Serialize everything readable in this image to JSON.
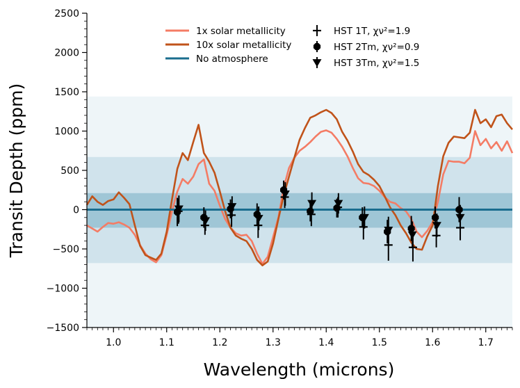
{
  "chart_data": {
    "type": "line",
    "title": "",
    "xlabel": "Wavelength (microns)",
    "ylabel": "Transit Depth (ppm)",
    "xlim": [
      0.95,
      1.75
    ],
    "ylim": [
      -1500,
      2500
    ],
    "grid": false,
    "x_ticks": [
      1.0,
      1.1,
      1.2,
      1.3,
      1.4,
      1.5,
      1.6,
      1.7
    ],
    "x_tick_labels": [
      "1.0",
      "1.1",
      "1.2",
      "1.3",
      "1.4",
      "1.5",
      "1.6",
      "1.7"
    ],
    "y_ticks": [
      -1500,
      -1000,
      -500,
      0,
      500,
      1000,
      1500,
      2000,
      2500
    ],
    "y_tick_labels": [
      "−1500",
      "−1000",
      "−500",
      "0",
      "500",
      "1000",
      "1500",
      "2000",
      "2500"
    ],
    "bands": [
      {
        "y_range": [
          -1500,
          1440
        ],
        "color": "#eef5f8"
      },
      {
        "y_range": [
          -680,
          670
        ],
        "color": "#d0e3ec"
      },
      {
        "y_range": [
          -230,
          210
        ],
        "color": "#9fc6d6"
      }
    ],
    "series": [
      {
        "name": "1x solar metallicity",
        "color": "#f47c65",
        "kind": "line",
        "x": [
          0.95,
          0.96,
          0.97,
          0.98,
          0.99,
          1.0,
          1.01,
          1.02,
          1.03,
          1.04,
          1.05,
          1.06,
          1.07,
          1.08,
          1.09,
          1.1,
          1.11,
          1.12,
          1.13,
          1.14,
          1.15,
          1.16,
          1.17,
          1.18,
          1.19,
          1.2,
          1.21,
          1.22,
          1.23,
          1.24,
          1.25,
          1.26,
          1.27,
          1.28,
          1.29,
          1.3,
          1.31,
          1.32,
          1.33,
          1.34,
          1.35,
          1.36,
          1.37,
          1.38,
          1.39,
          1.4,
          1.41,
          1.42,
          1.43,
          1.44,
          1.45,
          1.46,
          1.47,
          1.48,
          1.49,
          1.5,
          1.51,
          1.52,
          1.53,
          1.54,
          1.55,
          1.56,
          1.57,
          1.58,
          1.59,
          1.6,
          1.61,
          1.62,
          1.63,
          1.64,
          1.65,
          1.66,
          1.67,
          1.68,
          1.69,
          1.7,
          1.71,
          1.72,
          1.73,
          1.74,
          1.75
        ],
        "values": [
          -200,
          -240,
          -280,
          -220,
          -170,
          -180,
          -160,
          -190,
          -230,
          -320,
          -450,
          -560,
          -630,
          -670,
          -580,
          -320,
          -20,
          230,
          390,
          330,
          420,
          580,
          640,
          330,
          240,
          50,
          -120,
          -230,
          -300,
          -330,
          -320,
          -400,
          -560,
          -690,
          -600,
          -350,
          -100,
          280,
          530,
          660,
          750,
          800,
          860,
          930,
          990,
          1010,
          980,
          900,
          800,
          680,
          530,
          400,
          340,
          330,
          300,
          240,
          160,
          100,
          80,
          20,
          -20,
          -120,
          -280,
          -350,
          -270,
          -160,
          100,
          450,
          620,
          610,
          610,
          590,
          660,
          1000,
          820,
          900,
          780,
          860,
          750,
          870,
          720
        ]
      },
      {
        "name": "10x solar metallicity",
        "color": "#c0531a",
        "kind": "line",
        "x": [
          0.95,
          0.96,
          0.97,
          0.98,
          0.99,
          1.0,
          1.01,
          1.02,
          1.03,
          1.04,
          1.05,
          1.06,
          1.07,
          1.08,
          1.09,
          1.1,
          1.11,
          1.12,
          1.13,
          1.14,
          1.15,
          1.16,
          1.17,
          1.18,
          1.19,
          1.2,
          1.21,
          1.22,
          1.23,
          1.24,
          1.25,
          1.26,
          1.27,
          1.28,
          1.29,
          1.3,
          1.31,
          1.32,
          1.33,
          1.34,
          1.35,
          1.36,
          1.37,
          1.38,
          1.39,
          1.4,
          1.41,
          1.42,
          1.43,
          1.44,
          1.45,
          1.46,
          1.47,
          1.48,
          1.49,
          1.5,
          1.51,
          1.52,
          1.53,
          1.54,
          1.55,
          1.56,
          1.57,
          1.58,
          1.59,
          1.6,
          1.61,
          1.62,
          1.63,
          1.64,
          1.65,
          1.66,
          1.67,
          1.68,
          1.69,
          1.7,
          1.71,
          1.72,
          1.73,
          1.74,
          1.75
        ],
        "values": [
          60,
          170,
          100,
          60,
          110,
          130,
          220,
          150,
          70,
          -200,
          -460,
          -580,
          -610,
          -640,
          -560,
          -280,
          130,
          520,
          720,
          630,
          860,
          1080,
          720,
          610,
          470,
          230,
          -20,
          -230,
          -330,
          -370,
          -400,
          -500,
          -640,
          -710,
          -660,
          -430,
          -120,
          180,
          420,
          660,
          890,
          1040,
          1170,
          1200,
          1240,
          1270,
          1230,
          1150,
          990,
          880,
          740,
          580,
          480,
          440,
          380,
          300,
          170,
          30,
          -70,
          -200,
          -300,
          -420,
          -500,
          -510,
          -340,
          -200,
          300,
          680,
          850,
          930,
          920,
          910,
          980,
          1270,
          1100,
          1150,
          1050,
          1190,
          1210,
          1100,
          1020
        ]
      },
      {
        "name": "No atmosphere",
        "color": "#1a6d8e",
        "kind": "line",
        "x": [
          0.95,
          1.75
        ],
        "values": [
          0,
          0
        ]
      },
      {
        "name": "HST 1T, χν²=1.9",
        "display_label": "HST 1T, χν²=1.9",
        "color": "#000000",
        "kind": "errorbar",
        "marker": "plus",
        "x": [
          1.122,
          1.172,
          1.222,
          1.272,
          1.322,
          1.372,
          1.422,
          1.47,
          1.517,
          1.563,
          1.607,
          1.652
        ],
        "values": [
          -20,
          -200,
          -70,
          -200,
          160,
          -60,
          30,
          -220,
          -450,
          -480,
          -330,
          -230
        ],
        "errors": [
          160,
          120,
          150,
          160,
          140,
          150,
          130,
          160,
          200,
          180,
          150,
          160
        ]
      },
      {
        "name": "HST 2Tm, χν²=0.9",
        "display_label": "HST 2Tm, χν²=0.9",
        "color": "#000000",
        "kind": "errorbar",
        "marker": "octagon",
        "x": [
          1.12,
          1.17,
          1.22,
          1.27,
          1.32,
          1.37,
          1.42,
          1.468,
          1.515,
          1.56,
          1.605,
          1.65
        ],
        "values": [
          -30,
          -100,
          10,
          -60,
          250,
          -20,
          20,
          -100,
          -280,
          -240,
          -100,
          0
        ],
        "errors": [
          180,
          130,
          120,
          140,
          120,
          130,
          120,
          130,
          150,
          160,
          140,
          160
        ]
      },
      {
        "name": "HST 3Tm, χν²=1.5",
        "display_label": "HST 3Tm, χν²=1.5",
        "color": "#000000",
        "kind": "errorbar",
        "marker": "triangle-down",
        "x": [
          1.123,
          1.173,
          1.223,
          1.273,
          1.323,
          1.373,
          1.423,
          1.472,
          1.517,
          1.562,
          1.608,
          1.652
        ],
        "values": [
          10,
          -140,
          40,
          -110,
          200,
          80,
          80,
          -100,
          -260,
          -320,
          -200,
          -100
        ],
        "errors": [
          170,
          130,
          130,
          150,
          150,
          140,
          130,
          140,
          170,
          170,
          150,
          160
        ]
      }
    ],
    "legend": {
      "placement": "top-center",
      "columns": 2
    }
  }
}
